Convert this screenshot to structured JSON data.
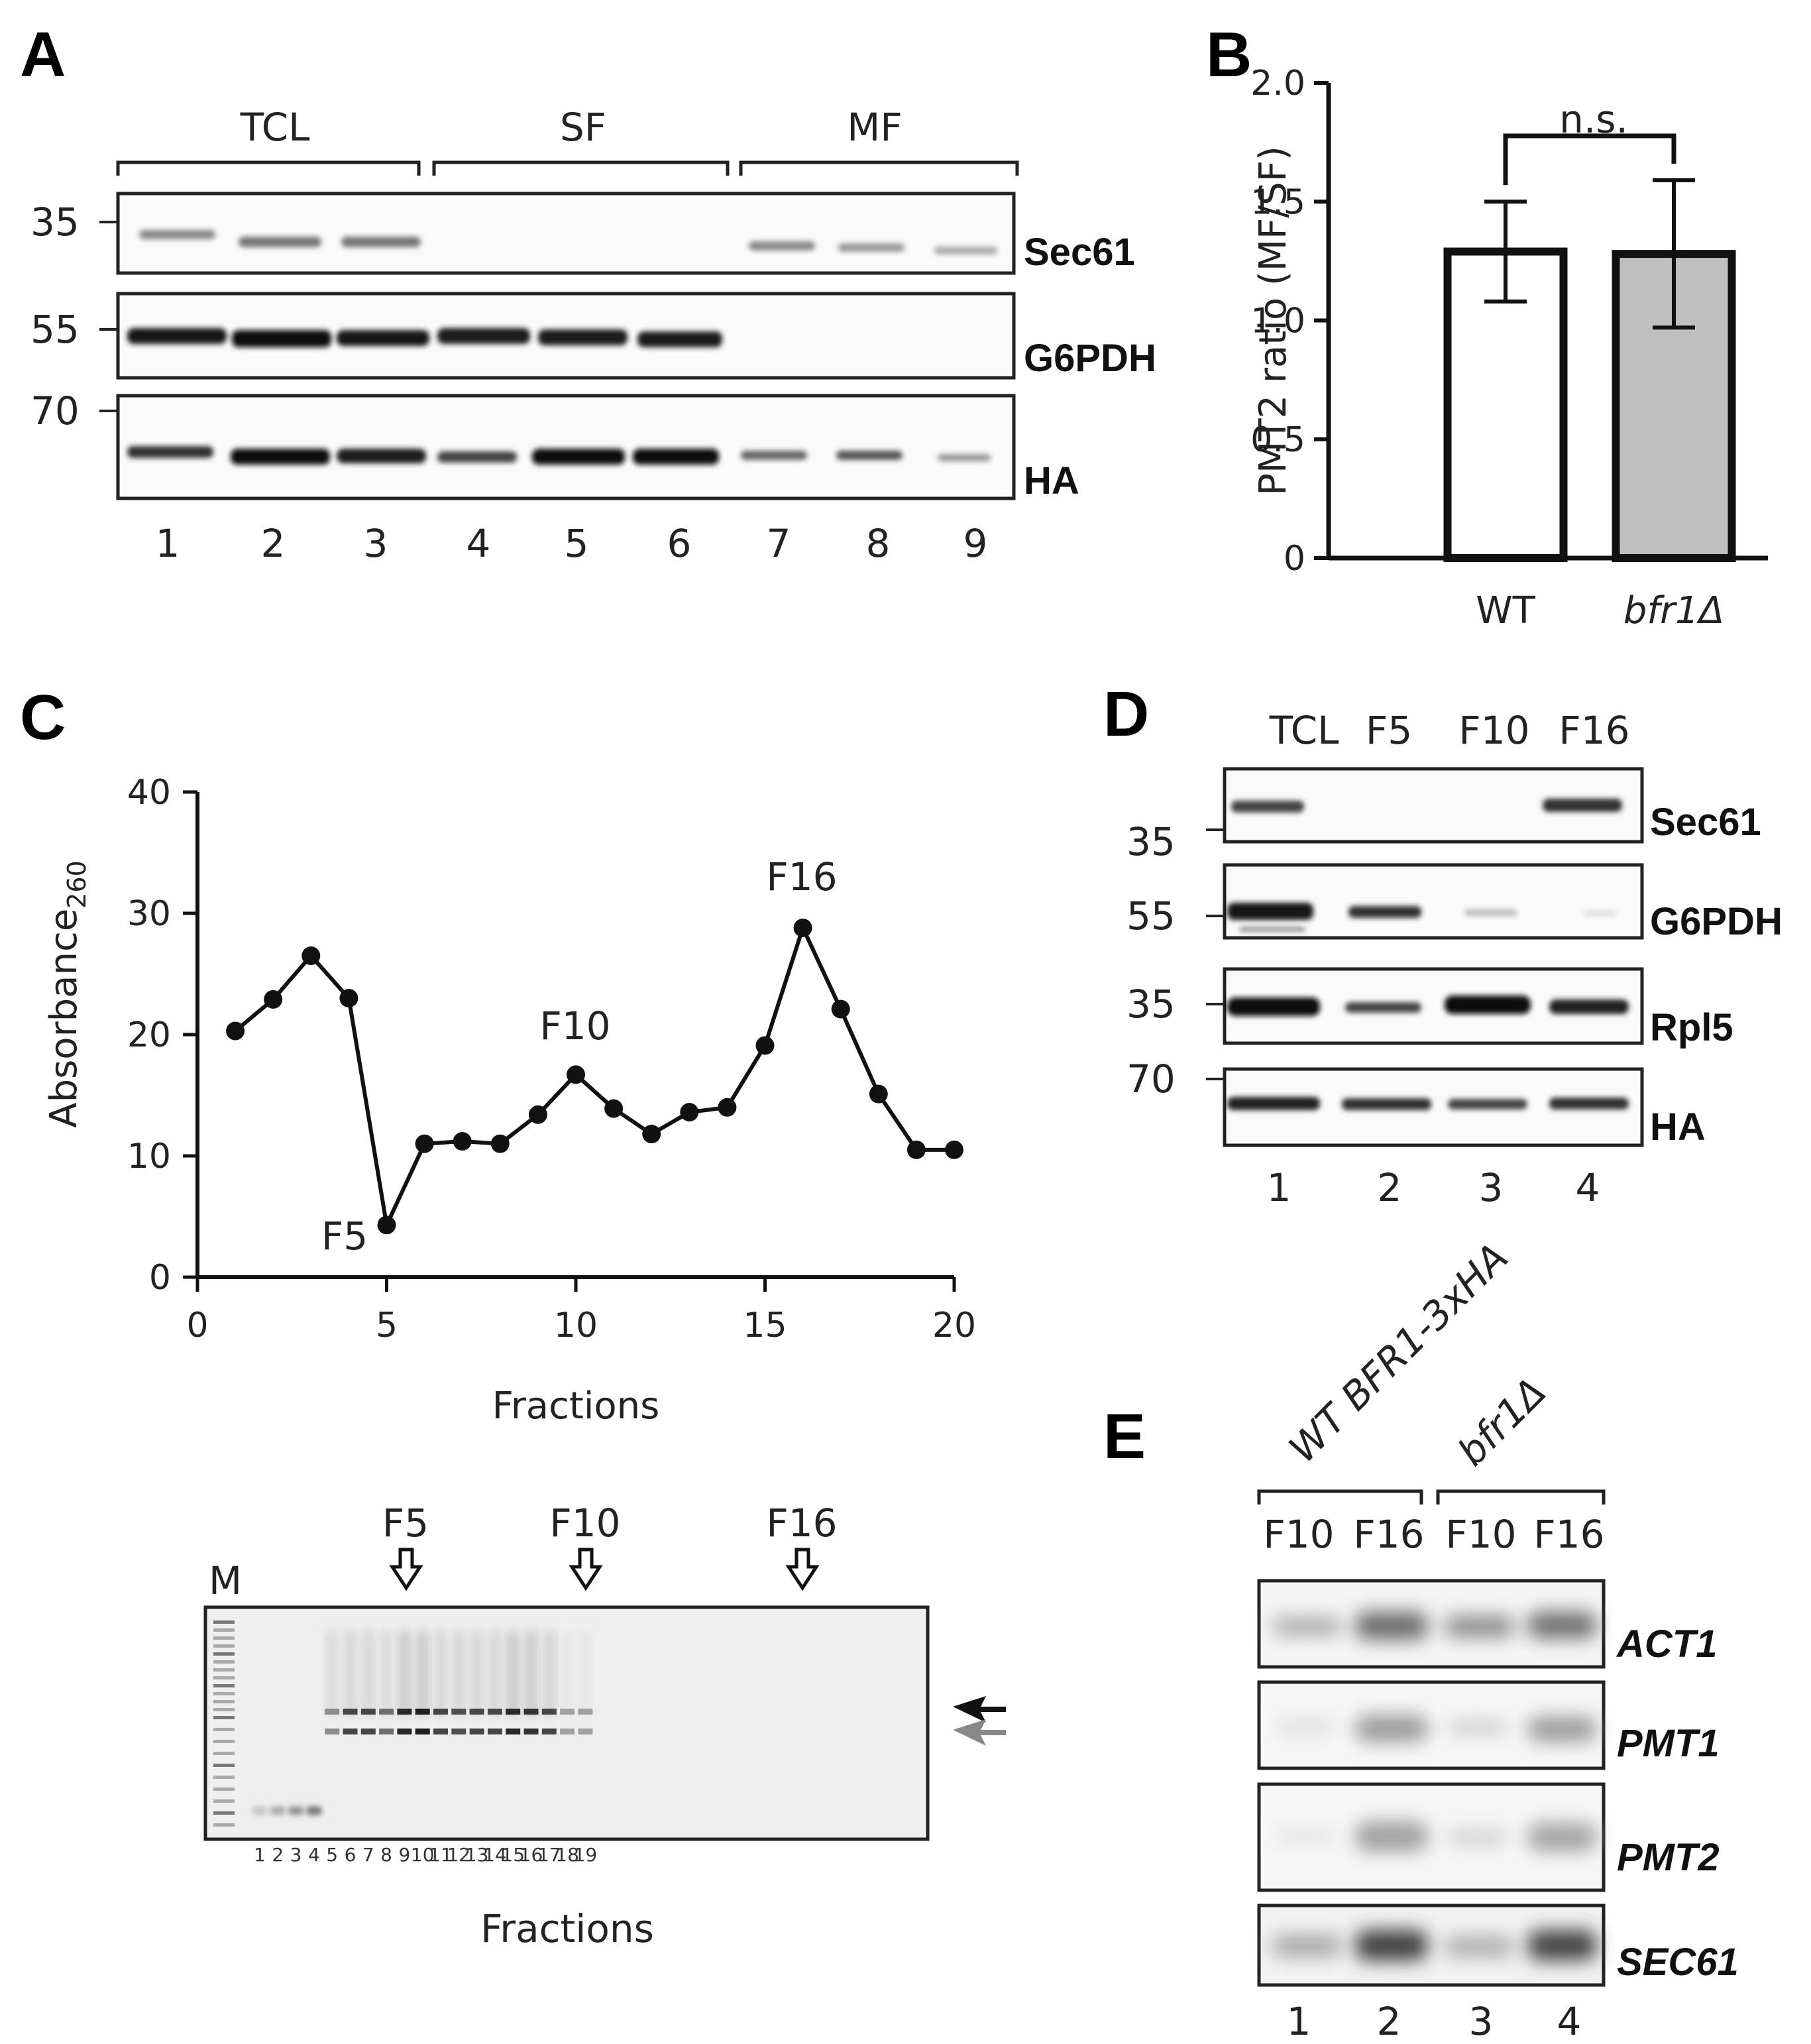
{
  "panelA": {
    "letter": "A",
    "groups": [
      "TCL",
      "SF",
      "MF"
    ],
    "mw": [
      "35",
      "55",
      "70"
    ],
    "bands": [
      "Sec61",
      "G6PDH",
      "HA"
    ],
    "lanes": [
      "1",
      "2",
      "3",
      "4",
      "5",
      "6",
      "7",
      "8",
      "9"
    ]
  },
  "panelB": {
    "letter": "B",
    "sig": "n.s."
  },
  "panelC": {
    "letter": "C",
    "annotations": [
      "F5",
      "F10",
      "F16"
    ],
    "gel_marker": "M",
    "gel_arrows": [
      "F5",
      "F10",
      "F16"
    ],
    "gel_lanes": [
      "1",
      "2",
      "3",
      "4",
      "5",
      "6",
      "7",
      "8",
      "9",
      "10",
      "11",
      "12",
      "13",
      "14",
      "15",
      "16",
      "17",
      "18",
      "19"
    ],
    "gel_xlabel": "Fractions"
  },
  "panelD": {
    "letter": "D",
    "lanes_top": [
      "TCL",
      "F5",
      "F10",
      "F16"
    ],
    "mw": [
      "35",
      "55",
      "35",
      "70"
    ],
    "bands": [
      "Sec61",
      "G6PDH",
      "Rpl5",
      "HA"
    ],
    "lanes": [
      "1",
      "2",
      "3",
      "4"
    ]
  },
  "panelE": {
    "letter": "E",
    "strains": [
      "WT BFR1-3xHA",
      "bfr1Δ"
    ],
    "fractions": [
      "F10",
      "F16",
      "F10",
      "F16"
    ],
    "bands": [
      "ACT1",
      "PMT1",
      "PMT2",
      "SEC61"
    ],
    "lanes": [
      "1",
      "2",
      "3",
      "4"
    ]
  },
  "chart_data": [
    {
      "type": "bar",
      "categories": [
        "WT",
        "bfr1Δ"
      ],
      "series": [
        {
          "values": [
            1.29,
            1.28
          ],
          "errors": [
            0.21,
            0.31
          ]
        }
      ],
      "colors": [
        "#ffffff",
        "#c0c0c0"
      ],
      "ylabel": "PMT2 ratio (MF/SF)",
      "ylim": [
        0,
        2.0
      ],
      "yticks": [
        "0",
        "0.5",
        "1.0",
        "1.5",
        "2.0"
      ]
    },
    {
      "type": "line",
      "x": [
        1,
        2,
        3,
        4,
        5,
        6,
        7,
        8,
        9,
        10,
        11,
        12,
        13,
        14,
        15,
        16,
        17,
        18,
        19,
        20
      ],
      "series": [
        {
          "values": [
            20.3,
            22.9,
            26.5,
            23.0,
            4.3,
            11.0,
            11.2,
            11.0,
            13.4,
            16.7,
            13.9,
            11.8,
            13.6,
            14.0,
            19.1,
            28.8,
            22.1,
            15.1,
            10.5,
            10.5
          ]
        }
      ],
      "xlabel": "Fractions",
      "ylabel": "Absorbance",
      "ylabel_sub": "260",
      "xlim": [
        0,
        20
      ],
      "ylim": [
        0,
        40
      ],
      "xticks": [
        "0",
        "5",
        "10",
        "15",
        "20"
      ],
      "yticks": [
        "0",
        "10",
        "20",
        "30",
        "40"
      ]
    }
  ]
}
